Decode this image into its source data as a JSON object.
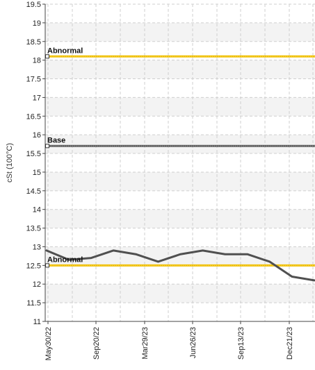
{
  "chart_data": {
    "type": "line",
    "ylabel": "cSt (100°C)",
    "ylim": [
      11,
      19.5
    ],
    "y_ticks": [
      "11",
      "11.5",
      "12",
      "12.5",
      "13",
      "13.5",
      "14",
      "14.5",
      "15",
      "15.5",
      "16",
      "16.5",
      "17",
      "17.5",
      "18",
      "18.5",
      "19",
      "19.5"
    ],
    "x_ticks": [
      "May30/22",
      "Sep20/22",
      "Mar29/23",
      "Jun26/23",
      "Sep13/23",
      "Dec21/23"
    ],
    "grid": true,
    "series": [
      {
        "values": [
          12.9,
          12.65,
          12.7,
          12.9,
          12.8,
          12.6,
          12.8,
          12.9,
          12.8,
          12.8,
          12.6,
          12.2,
          12.1
        ],
        "color": "#505050"
      }
    ],
    "reference_lines": [
      {
        "label": "Abnormal",
        "value": 18.1,
        "color": "#f0c000"
      },
      {
        "label": "Base",
        "value": 15.7,
        "color": "#606060"
      },
      {
        "label": "Abnormal",
        "value": 12.5,
        "color": "#f0c000"
      }
    ],
    "colors": {
      "band": "#f3f3f3",
      "grid": "#cfcfcf",
      "axis": "#444444"
    }
  }
}
